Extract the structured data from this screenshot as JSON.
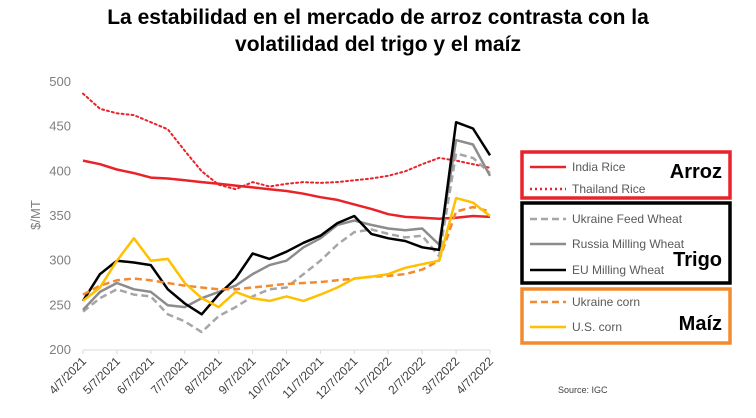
{
  "title": {
    "line1": "La estabilidad en el mercado de arroz contrasta con la",
    "line2": "volatilidad del trigo y el maíz"
  },
  "source": "Source: IGC",
  "groups": [
    {
      "label": "Arroz",
      "color": "#e8232a",
      "series": [
        "India Rice",
        "Thailand Rice"
      ]
    },
    {
      "label": "Trigo",
      "color": "#000000",
      "series": [
        "Ukraine Feed Wheat",
        "Russia Milling Wheat",
        "EU Milling Wheat"
      ]
    },
    {
      "label": "Maíz",
      "color": "#f28b30",
      "series": [
        "Ukraine corn",
        "U.S. corn"
      ]
    }
  ],
  "chart_data": {
    "type": "line",
    "title": "La estabilidad en el mercado de arroz contrasta con la volatilidad del trigo y el maíz",
    "ylabel": "$/MT",
    "xlabel": "",
    "ylim": [
      200,
      500
    ],
    "yticks": [
      200,
      250,
      300,
      350,
      400,
      450,
      500
    ],
    "grid": false,
    "x_tick_labels": [
      "4/7/2021",
      "5/7/2021",
      "6/7/2021",
      "7/7/2021",
      "8/7/2021",
      "9/7/2021",
      "10/7/2021",
      "11/7/2021",
      "12/7/2021",
      "1/7/2022",
      "2/7/2022",
      "3/7/2022",
      "4/7/2022"
    ],
    "x": [
      "4/7/2021",
      "4/21/2021",
      "5/7/2021",
      "5/21/2021",
      "6/7/2021",
      "6/21/2021",
      "7/7/2021",
      "7/21/2021",
      "8/7/2021",
      "8/21/2021",
      "9/7/2021",
      "9/21/2021",
      "10/7/2021",
      "10/21/2021",
      "11/7/2021",
      "11/21/2021",
      "12/7/2021",
      "12/21/2021",
      "1/7/2022",
      "1/21/2022",
      "2/7/2022",
      "2/21/2022",
      "3/7/2022",
      "3/21/2022",
      "4/7/2022"
    ],
    "series": [
      {
        "name": "India Rice",
        "color": "#e8232a",
        "dash": "solid",
        "width": 2.5,
        "values": [
          412,
          408,
          402,
          398,
          393,
          392,
          390,
          388,
          386,
          384,
          382,
          380,
          378,
          375,
          371,
          368,
          363,
          358,
          352,
          349,
          348,
          347,
          348,
          350,
          349
        ]
      },
      {
        "name": "Thailand Rice",
        "color": "#e8232a",
        "dash": "dotted",
        "width": 2,
        "values": [
          487,
          470,
          465,
          463,
          455,
          447,
          423,
          400,
          385,
          380,
          388,
          383,
          386,
          388,
          387,
          388,
          390,
          392,
          395,
          400,
          408,
          415,
          412,
          408,
          404
        ]
      },
      {
        "name": "Ukraine Feed Wheat",
        "color": "#a6a6a6",
        "dash": "dashed",
        "width": 2.5,
        "values": [
          243,
          258,
          268,
          262,
          260,
          240,
          232,
          220,
          238,
          248,
          260,
          268,
          270,
          285,
          300,
          318,
          332,
          335,
          330,
          326,
          328,
          305,
          420,
          415,
          398
        ]
      },
      {
        "name": "Russia Milling Wheat",
        "color": "#8c8c8c",
        "dash": "solid",
        "width": 2.5,
        "values": [
          245,
          265,
          275,
          268,
          265,
          250,
          248,
          258,
          265,
          272,
          285,
          295,
          300,
          315,
          325,
          340,
          345,
          340,
          336,
          334,
          336,
          318,
          435,
          430,
          395
        ]
      },
      {
        "name": "EU Milling Wheat",
        "color": "#000000",
        "dash": "solid",
        "width": 2.5,
        "values": [
          255,
          285,
          300,
          298,
          295,
          268,
          252,
          240,
          262,
          280,
          308,
          302,
          310,
          320,
          328,
          342,
          350,
          330,
          325,
          322,
          315,
          312,
          455,
          448,
          418
        ]
      },
      {
        "name": "Ukraine corn",
        "color": "#f28b30",
        "dash": "dashed",
        "width": 2.5,
        "values": [
          262,
          272,
          278,
          280,
          278,
          275,
          272,
          270,
          268,
          268,
          270,
          272,
          274,
          275,
          276,
          278,
          280,
          282,
          283,
          285,
          290,
          300,
          355,
          360,
          355
        ]
      },
      {
        "name": "U.S. corn",
        "color": "#ffc000",
        "dash": "solid",
        "width": 2.5,
        "values": [
          255,
          270,
          300,
          325,
          300,
          302,
          275,
          258,
          248,
          265,
          258,
          255,
          260,
          255,
          262,
          270,
          280,
          282,
          285,
          292,
          296,
          300,
          370,
          365,
          350
        ]
      }
    ]
  }
}
